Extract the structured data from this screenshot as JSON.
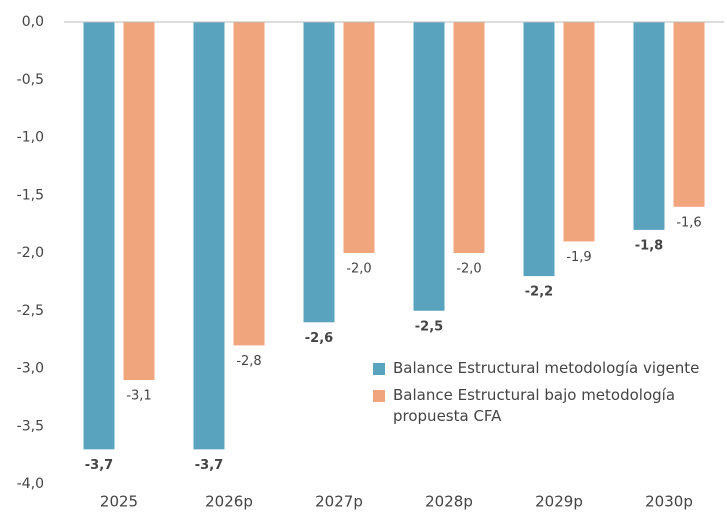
{
  "chart_data": {
    "type": "bar",
    "categories": [
      "2025",
      "2026p",
      "2027p",
      "2028p",
      "2029p",
      "2030p"
    ],
    "series": [
      {
        "name": "Balance Estructural metodología vigente",
        "color": "#5aa3bf",
        "values": [
          -3.7,
          -3.7,
          -2.6,
          -2.5,
          -2.2,
          -1.8
        ],
        "value_labels": [
          "-3,7",
          "-3,7",
          "-2,6",
          "-2,5",
          "-2,2",
          "-1,8"
        ]
      },
      {
        "name": "Balance Estructural bajo metodología propuesta CFA",
        "color": "#f0a57c",
        "values": [
          -3.1,
          -2.8,
          -2.0,
          -2.0,
          -1.9,
          -1.6
        ],
        "value_labels": [
          "-3,1",
          "-2,8",
          "-2,0",
          "-2,0",
          "-1,9",
          "-1,6"
        ]
      }
    ],
    "ylim": [
      -4.0,
      0.0
    ],
    "yticks": [
      {
        "value": 0.0,
        "label": "0,0"
      },
      {
        "value": -0.5,
        "label": "-0,5"
      },
      {
        "value": -1.0,
        "label": "-1,0"
      },
      {
        "value": -1.5,
        "label": "-1,5"
      },
      {
        "value": -2.0,
        "label": "-2,0"
      },
      {
        "value": -2.5,
        "label": "-2,5"
      },
      {
        "value": -3.0,
        "label": "-3,0"
      },
      {
        "value": -3.5,
        "label": "-3,5"
      },
      {
        "value": -4.0,
        "label": "-4,0"
      }
    ],
    "legend": "lower-right"
  }
}
